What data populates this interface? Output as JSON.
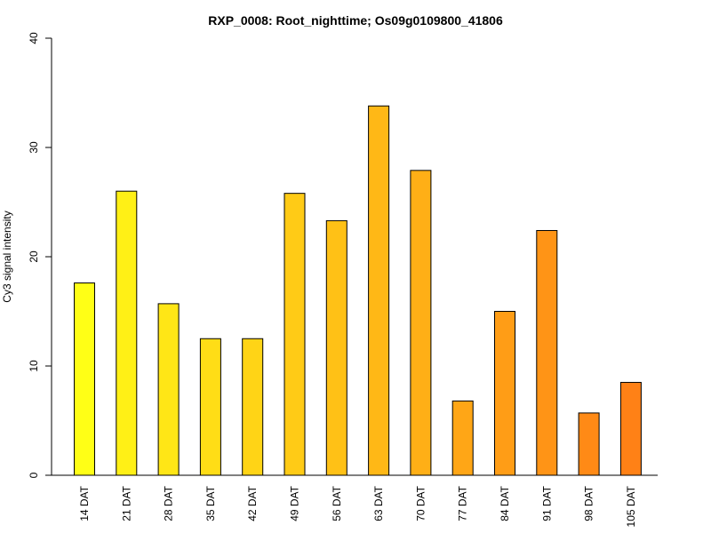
{
  "chart_data": {
    "type": "bar",
    "title": "RXP_0008: Root_nighttime; Os09g0109800_41806",
    "xlabel": "",
    "ylabel": "Cy3 signal intensity",
    "ylim": [
      0,
      40
    ],
    "yticks": [
      0,
      10,
      20,
      30,
      40
    ],
    "grid": false,
    "categories": [
      "14 DAT",
      "21 DAT",
      "28 DAT",
      "35 DAT",
      "42 DAT",
      "49 DAT",
      "56 DAT",
      "63 DAT",
      "70 DAT",
      "77 DAT",
      "84 DAT",
      "91 DAT",
      "98 DAT",
      "105 DAT"
    ],
    "values": [
      17.6,
      26.0,
      15.7,
      12.5,
      12.5,
      25.8,
      23.3,
      33.8,
      27.9,
      6.8,
      15.0,
      22.4,
      5.7,
      8.5
    ],
    "colors": [
      "#FFFF16",
      "#FFF016",
      "#FFE616",
      "#FFDD16",
      "#FFD416",
      "#FFCB16",
      "#FFC116",
      "#FFB816",
      "#FFAF16",
      "#FFA616",
      "#FF9D16",
      "#FF9416",
      "#FF8A16",
      "#FF8116"
    ]
  }
}
